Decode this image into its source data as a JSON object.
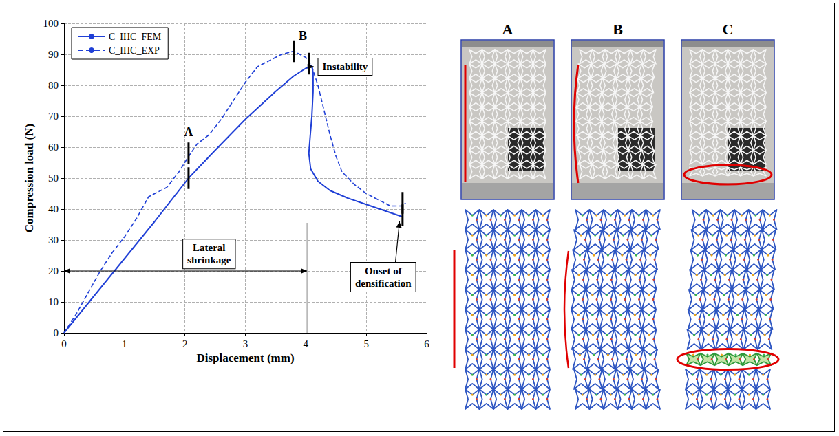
{
  "chart_data": {
    "type": "line",
    "xlabel": "Displacement (mm)",
    "ylabel": "Compression load (N)",
    "xlim": [
      0,
      6
    ],
    "xticks": [
      0,
      1,
      2,
      3,
      4,
      5,
      6
    ],
    "ylim": [
      0,
      100
    ],
    "yticks": [
      0,
      10,
      20,
      30,
      40,
      50,
      60,
      70,
      80,
      90,
      100
    ],
    "grid": true,
    "legend": "upper left",
    "series": [
      {
        "name": "C_IHC_FEM",
        "color": "#1f3fd6",
        "line_style": "solid",
        "x": [
          0,
          0.5,
          1,
          1.5,
          2.06,
          2.5,
          3,
          3.5,
          3.8,
          4,
          4.1,
          4.12,
          4.12,
          4.1,
          4.07,
          4.05,
          4.08,
          4.2,
          4.4,
          4.7,
          5,
          5.3,
          5.6
        ],
        "values": [
          0,
          12,
          24,
          36,
          50,
          59,
          69,
          78,
          83,
          85.5,
          86.3,
          84,
          78,
          70,
          63,
          58,
          53,
          49,
          46,
          43.5,
          41.5,
          39.5,
          37.5
        ]
      },
      {
        "name": "C_IHC_EXP",
        "color": "#1f3fd6",
        "line_style": "dashed",
        "x": [
          0,
          0.2,
          0.4,
          0.6,
          0.8,
          1,
          1.2,
          1.4,
          1.5,
          1.7,
          1.9,
          2.06,
          2.2,
          2.4,
          2.6,
          2.8,
          3,
          3.2,
          3.4,
          3.6,
          3.8,
          3.9,
          4,
          4.1,
          4.2,
          4.3,
          4.4,
          4.5,
          4.6,
          4.8,
          5,
          5.2,
          5.4,
          5.6,
          5.65
        ],
        "values": [
          0,
          6,
          13,
          20,
          26,
          31,
          37,
          44,
          45,
          47,
          52,
          57,
          61,
          64,
          69,
          75,
          81,
          86,
          88,
          90,
          91,
          90,
          89,
          86,
          80,
          72,
          64,
          57,
          52,
          48,
          45,
          43,
          41,
          41,
          42
        ]
      }
    ],
    "markers": [
      {
        "x": 2.06,
        "y": 50
      },
      {
        "x": 2.06,
        "y": 58
      },
      {
        "x": 3.8,
        "y": 91
      },
      {
        "x": 4.05,
        "y": 87
      },
      {
        "x": 5.6,
        "y": 38
      },
      {
        "x": 5.6,
        "y": 42
      }
    ],
    "annotations": [
      {
        "text": "A",
        "x": 2.06,
        "y": 65
      },
      {
        "text": "B",
        "x": 3.95,
        "y": 96
      },
      {
        "text": "Instability",
        "x": 4.65,
        "y": 86,
        "box": true,
        "arrow_to": [
          4.13,
          86
        ]
      },
      {
        "text": "Lateral shrinkage",
        "x": 2.4,
        "y": 25.5,
        "box": true
      },
      {
        "text": "Onset of densification",
        "x": 5.28,
        "y": 18,
        "box": true,
        "arrow_to": [
          5.55,
          36
        ]
      }
    ],
    "ranges": [
      {
        "x": [
          0,
          4.02
        ],
        "y": 20
      }
    ]
  },
  "panels": {
    "labels": [
      "A",
      "B",
      "C"
    ]
  }
}
